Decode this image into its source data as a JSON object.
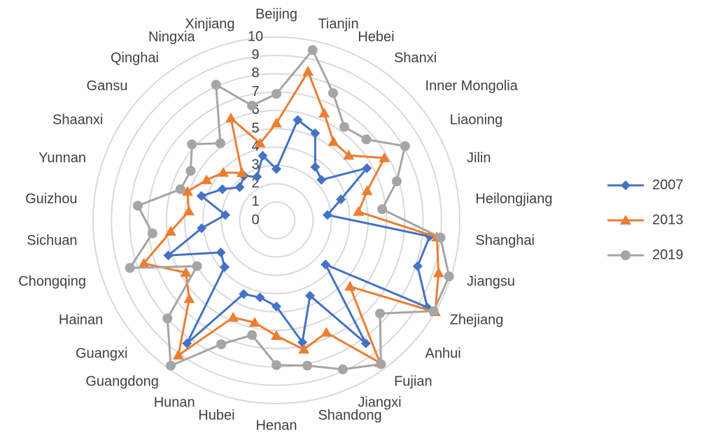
{
  "chart_data": {
    "type": "radar",
    "categories": [
      "Beijing",
      "Tianjin",
      "Hebei",
      "Shanxi",
      "Inner Mongolia",
      "Liaoning",
      "Jilin",
      "Heilongjiang",
      "Shanghai",
      "Jiangsu",
      "Zhejiang",
      "Anhui",
      "Fujian",
      "Jiangxi",
      "Shandong",
      "Henan",
      "Hubei",
      "Hunan",
      "Guangdong",
      "Guangxi",
      "Hainan",
      "Chongqing",
      "Sichuan",
      "Guizhou",
      "Yunnan",
      "Shaanxi",
      "Gansu",
      "Qinghai",
      "Ningxia",
      "Xinjiang"
    ],
    "series": [
      {
        "name": "2007",
        "color": "#4472c4",
        "marker": "diamond",
        "values": [
          2.8,
          5.6,
          5.2,
          3.6,
          3.3,
          5.7,
          3.7,
          2.8,
          8.4,
          8.1,
          9.5,
          3.6,
          8.3,
          4.5,
          6.8,
          4.7,
          4.3,
          4.4,
          8.3,
          3.8,
          3.5,
          6.2,
          4.1,
          2.8,
          4.3,
          3.4,
          2.7,
          3.0,
          2.6,
          3.6
        ]
      },
      {
        "name": "2013",
        "color": "#ed7d31",
        "marker": "triangle",
        "values": [
          5.3,
          8.3,
          6.4,
          5.3,
          5.3,
          6.8,
          5.2,
          4.5,
          8.8,
          9.3,
          10.0,
          5.4,
          9.6,
          6.7,
          7.2,
          6.3,
          5.7,
          5.8,
          9.1,
          6.4,
          5.7,
          7.6,
          5.8,
          4.8,
          5.1,
          4.4,
          3.9,
          3.2,
          6.1,
          4.3
        ]
      },
      {
        "name": "2019",
        "color": "#a5a5a5",
        "marker": "circle",
        "values": [
          6.9,
          9.5,
          7.6,
          6.3,
          6.6,
          8.1,
          6.9,
          5.8,
          9.0,
          9.9,
          9.9,
          7.6,
          9.7,
          8.9,
          8.1,
          7.9,
          6.4,
          7.4,
          9.8,
          8.0,
          5.0,
          8.4,
          6.8,
          7.6,
          5.5,
          5.4,
          6.2,
          5.2,
          8.1,
          6.4
        ]
      }
    ],
    "ylim": [
      0,
      10
    ],
    "yticks": [
      0,
      1,
      2,
      3,
      4,
      5,
      6,
      7,
      8,
      9,
      10
    ],
    "grid": true,
    "legend": "right"
  }
}
